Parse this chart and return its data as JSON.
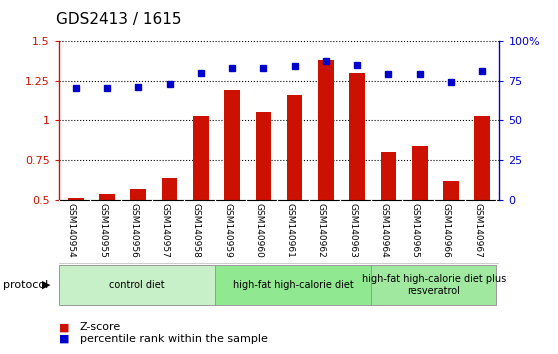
{
  "title": "GDS2413 / 1615",
  "samples": [
    "GSM140954",
    "GSM140955",
    "GSM140956",
    "GSM140957",
    "GSM140958",
    "GSM140959",
    "GSM140960",
    "GSM140961",
    "GSM140962",
    "GSM140963",
    "GSM140964",
    "GSM140965",
    "GSM140966",
    "GSM140967"
  ],
  "zscore": [
    0.51,
    0.54,
    0.57,
    0.64,
    1.03,
    1.19,
    1.05,
    1.16,
    1.38,
    1.3,
    0.8,
    0.84,
    0.62,
    1.03
  ],
  "percentile": [
    70,
    70,
    71,
    73,
    80,
    83,
    83,
    84,
    87,
    85,
    79,
    79,
    74,
    81
  ],
  "bar_color": "#cc1100",
  "dot_color": "#0000cc",
  "ylim_left": [
    0.5,
    1.5
  ],
  "ylim_right": [
    0,
    100
  ],
  "yticks_left": [
    0.5,
    0.75,
    1.0,
    1.25,
    1.5
  ],
  "ytick_labels_left": [
    "0.5",
    "0.75",
    "1",
    "1.25",
    "1.5"
  ],
  "yticks_right": [
    0,
    25,
    50,
    75,
    100
  ],
  "ytick_labels_right": [
    "0",
    "25",
    "50",
    "75",
    "100%"
  ],
  "groups": [
    {
      "label": "control diet",
      "start": 0,
      "end": 4,
      "color": "#c8f0c8"
    },
    {
      "label": "high-fat high-calorie diet",
      "start": 5,
      "end": 9,
      "color": "#90e890"
    },
    {
      "label": "high-fat high-calorie diet plus\nresveratrol",
      "start": 10,
      "end": 13,
      "color": "#a0e8a0"
    }
  ],
  "protocol_label": "protocol",
  "legend_zscore": "Z-score",
  "legend_percentile": "percentile rank within the sample",
  "background_color": "#ffffff",
  "tick_area_bg": "#d0d0d0",
  "axis_color_left": "#cc1100",
  "axis_color_right": "#0000cc",
  "title_fontsize": 11,
  "bar_width": 0.5
}
